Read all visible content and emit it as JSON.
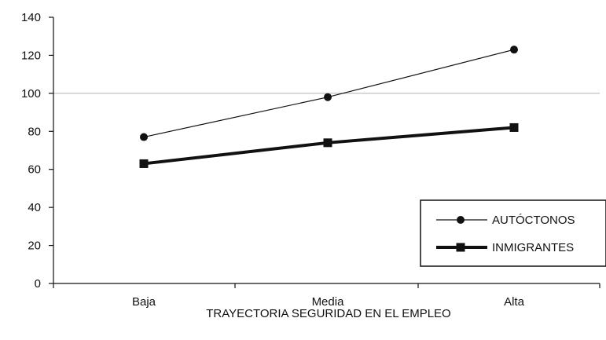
{
  "chart_data": {
    "type": "line",
    "categories": [
      "Baja",
      "Media",
      "Alta"
    ],
    "series": [
      {
        "name": "AUTÓCTONOS",
        "values": [
          77,
          98,
          123
        ],
        "color": "#111111",
        "marker": "circle",
        "line": "thin"
      },
      {
        "name": "INMIGRANTES",
        "values": [
          63,
          74,
          82
        ],
        "color": "#111111",
        "marker": "square",
        "line": "thick"
      }
    ],
    "xlabel": "TRAYECTORIA SEGURIDAD EN EL EMPLEO",
    "ylabel": "",
    "ylim": [
      0,
      140
    ],
    "yticks": [
      0,
      20,
      40,
      60,
      80,
      100,
      120,
      140
    ],
    "gridlines": [
      100
    ],
    "grid_color": "#b0b0b0",
    "legend_position": "bottom-right"
  }
}
